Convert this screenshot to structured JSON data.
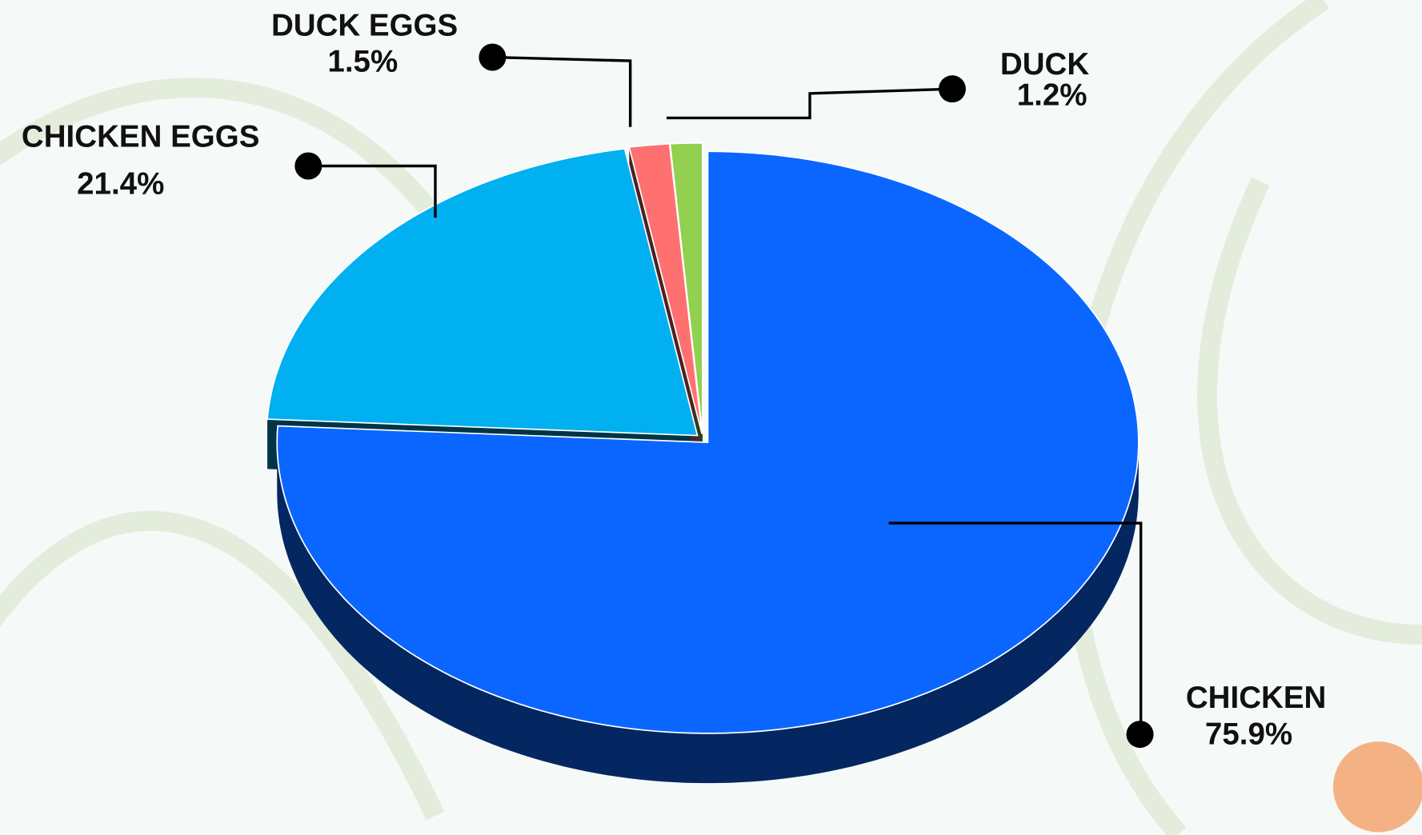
{
  "chart_data": {
    "type": "pie",
    "categories": [
      "CHICKEN",
      "CHICKEN EGGS",
      "DUCK EGGS",
      "DUCK"
    ],
    "values": [
      75.9,
      21.4,
      1.5,
      1.2
    ],
    "value_labels": [
      "75.9%",
      "21.4%",
      "1.5%",
      "1.2%"
    ],
    "colors": [
      "#0a66ff",
      "#00b0f0",
      "#ff7070",
      "#92d050"
    ]
  }
}
